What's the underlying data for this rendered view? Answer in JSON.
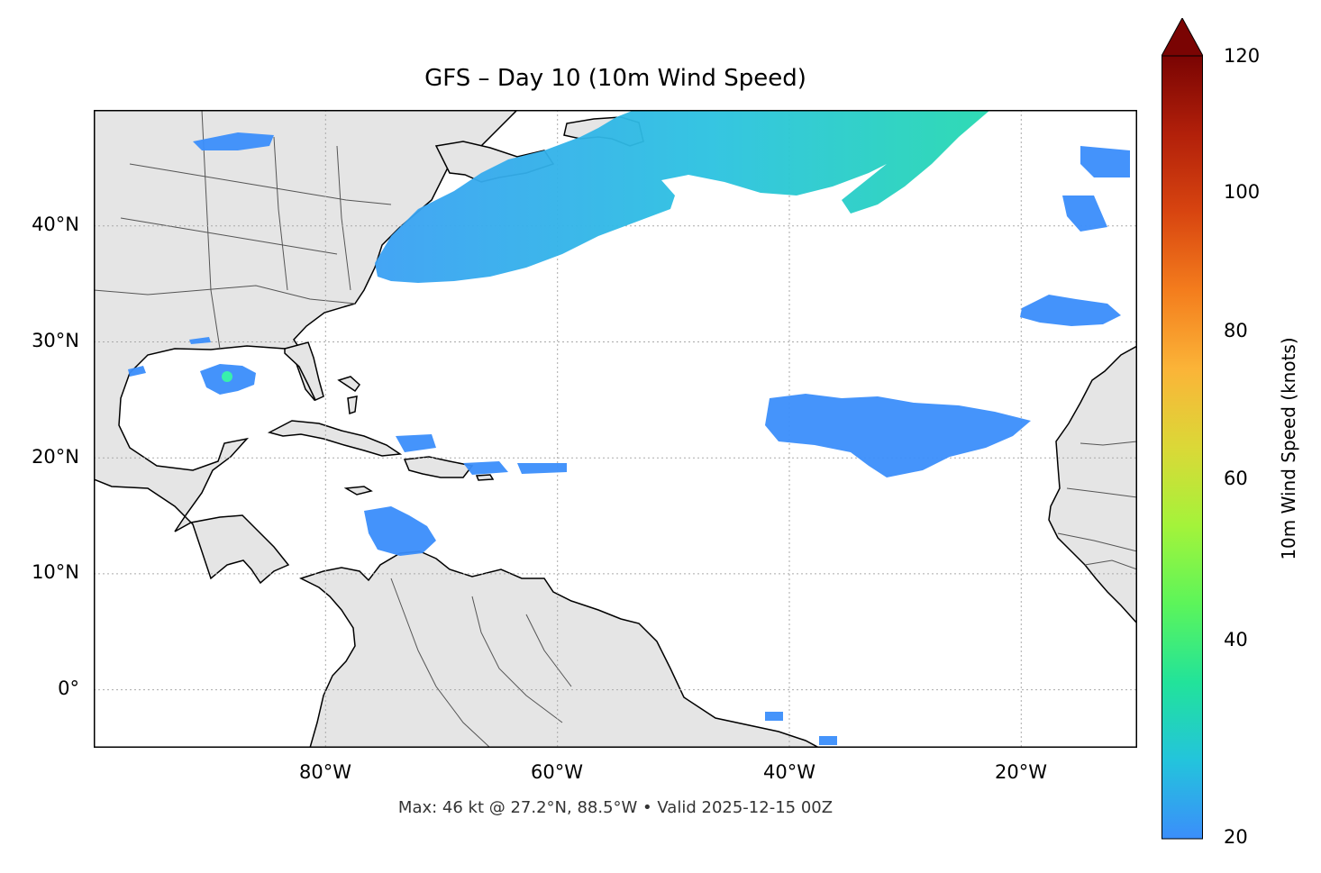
{
  "title": "GFS – Day 10 (10m Wind Speed)",
  "footer": "Max: 46 kt @ 27.2°N, 88.5°W • Valid 2025-12-15 00Z",
  "map": {
    "lon_range": [
      -100,
      -10
    ],
    "lat_range": [
      -5,
      50
    ],
    "lat_ticks": [
      "40°N",
      "30°N",
      "20°N",
      "10°N",
      "0°"
    ],
    "lon_ticks": [
      "80°W",
      "60°W",
      "40°W",
      "20°W"
    ],
    "land_color": "#e5e5e5",
    "ocean_color": "#ffffff",
    "gridlines": true
  },
  "colorbar": {
    "label": "10m Wind Speed (knots)",
    "ticks": [
      "120",
      "100",
      "80",
      "60",
      "40",
      "20"
    ],
    "range": [
      20,
      120
    ],
    "extend": "max",
    "colors": [
      "#3b8efb",
      "#23c4dc",
      "#22e39a",
      "#5cf55a",
      "#a4f33a",
      "#dbd837",
      "#fbb438",
      "#f47d1d",
      "#d84510",
      "#b2200a",
      "#7a0403"
    ]
  },
  "wind_regions": [
    {
      "name": "North Atlantic storm band",
      "color": "#33b3e6"
    },
    {
      "name": "Gulf of Mexico maximum",
      "color": "#22e3a0"
    },
    {
      "name": "Central Atlantic trade winds",
      "color": "#3b90f8"
    },
    {
      "name": "Caribbean trade winds",
      "color": "#3b90f8"
    }
  ]
}
